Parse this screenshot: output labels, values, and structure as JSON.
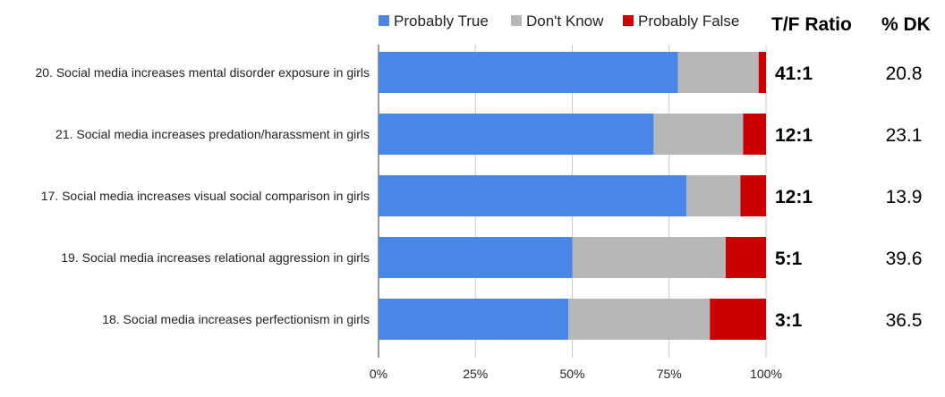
{
  "chart_data": {
    "type": "bar",
    "orientation": "horizontal",
    "stacked": true,
    "percent_stacked": true,
    "title": "",
    "xlabel": "",
    "ylabel": "",
    "xlim": [
      0,
      100
    ],
    "x_ticks": [
      "0%",
      "25%",
      "50%",
      "75%",
      "100%"
    ],
    "legend_position": "top",
    "categories": [
      "20. Social media increases mental disorder exposure in girls",
      "21. Social media increases predation/harassment in girls",
      "17. Social media increases visual social comparison in girls",
      "19. Social media increases relational aggression in girls",
      "18. Social media increases perfectionism in girls"
    ],
    "series": [
      {
        "name": "Probably True",
        "color": "#4a86e8",
        "values": [
          77.3,
          71.0,
          79.5,
          50.0,
          49.0
        ]
      },
      {
        "name": "Don't Know",
        "color": "#b7b7b7",
        "values": [
          20.8,
          23.1,
          13.9,
          39.6,
          36.5
        ]
      },
      {
        "name": "Probably False",
        "color": "#cc0000",
        "values": [
          1.9,
          5.9,
          6.6,
          10.4,
          14.5
        ]
      }
    ],
    "extra_columns": {
      "ratio_header": "T/F Ratio",
      "dk_header": "% DK",
      "ratios": [
        "41:1",
        "12:1",
        "12:1",
        "5:1",
        "3:1"
      ],
      "dk_values": [
        "20.8",
        "23.1",
        "13.9",
        "39.6",
        "36.5"
      ]
    }
  }
}
